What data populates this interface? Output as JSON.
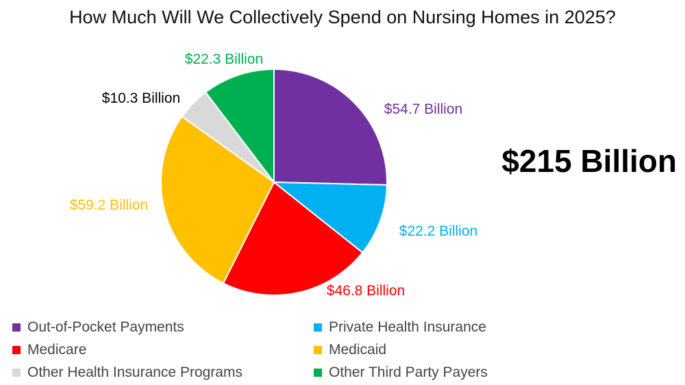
{
  "chart_data": {
    "type": "pie",
    "title": "How Much Will We Collectively Spend on Nursing Homes in 2025?",
    "total_label": "$215 Billion",
    "slices": [
      {
        "name": "Out-of-Pocket Payments",
        "value": 54.7,
        "label": "$54.7 Billion",
        "color": "#7030A0"
      },
      {
        "name": "Private Health Insurance",
        "value": 22.2,
        "label": "$22.2 Billion",
        "color": "#00B0F0"
      },
      {
        "name": "Medicare",
        "value": 46.8,
        "label": "$46.8 Billion",
        "color": "#FF0000"
      },
      {
        "name": "Medicaid",
        "value": 59.2,
        "label": "$59.2 Billion",
        "color": "#FFC000"
      },
      {
        "name": "Other Health Insurance Programs",
        "value": 10.3,
        "label": "$10.3 Billion",
        "color": "#D9D9D9",
        "label_color": "#000000"
      },
      {
        "name": "Other Third Party Payers",
        "value": 22.3,
        "label": "$22.3 Billion",
        "color": "#00B050"
      }
    ],
    "legend_position": "bottom"
  }
}
